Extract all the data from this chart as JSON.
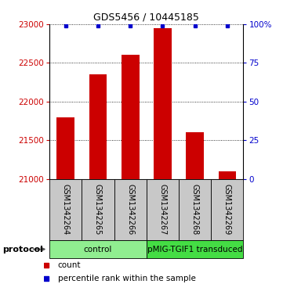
{
  "title": "GDS5456 / 10445185",
  "samples": [
    "GSM1342264",
    "GSM1342265",
    "GSM1342266",
    "GSM1342267",
    "GSM1342268",
    "GSM1342269"
  ],
  "counts": [
    21800,
    22350,
    22600,
    22950,
    21600,
    21100
  ],
  "percentile_ranks": [
    99,
    99,
    99,
    99,
    99,
    99
  ],
  "ylim_left": [
    21000,
    23000
  ],
  "ylim_right": [
    0,
    100
  ],
  "yticks_left": [
    21000,
    21500,
    22000,
    22500,
    23000
  ],
  "yticks_right": [
    0,
    25,
    50,
    75,
    100
  ],
  "ytick_labels_right": [
    "0",
    "25",
    "50",
    "75",
    "100%"
  ],
  "bar_color": "#cc0000",
  "dot_color": "#0000cc",
  "bg_label": "#c8c8c8",
  "control_color": "#90ee90",
  "transduced_color": "#44dd44",
  "legend_items": [
    {
      "label": "count",
      "color": "#cc0000"
    },
    {
      "label": "percentile rank within the sample",
      "color": "#0000cc"
    }
  ],
  "protocol_label": "protocol",
  "figsize": [
    3.61,
    3.63
  ],
  "dpi": 100
}
